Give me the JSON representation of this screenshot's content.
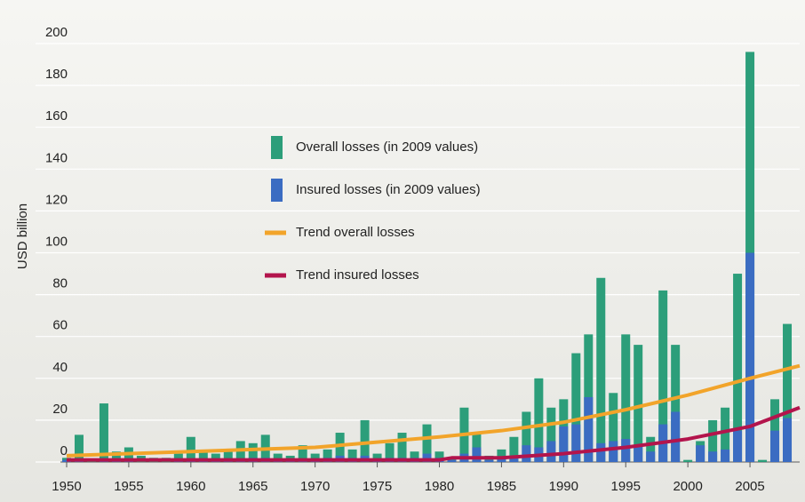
{
  "chart_data": {
    "type": "bar",
    "y_label": "USD billion",
    "x": [
      1950,
      1951,
      1952,
      1953,
      1954,
      1955,
      1956,
      1957,
      1958,
      1959,
      1960,
      1961,
      1962,
      1963,
      1964,
      1965,
      1966,
      1967,
      1968,
      1969,
      1970,
      1971,
      1972,
      1973,
      1974,
      1975,
      1976,
      1977,
      1978,
      1979,
      1980,
      1981,
      1982,
      1983,
      1984,
      1985,
      1986,
      1987,
      1988,
      1989,
      1990,
      1991,
      1992,
      1993,
      1994,
      1995,
      1996,
      1997,
      1998,
      1999,
      2000,
      2001,
      2002,
      2003,
      2004,
      2005,
      2006,
      2007,
      2008
    ],
    "xlim": [
      1949.5,
      2009
    ],
    "xticks": [
      1950,
      1955,
      1960,
      1965,
      1970,
      1975,
      1980,
      1985,
      1990,
      1995,
      2000,
      2005
    ],
    "ylim": [
      0,
      200
    ],
    "yticks": [
      0,
      20,
      40,
      60,
      80,
      100,
      120,
      140,
      160,
      180,
      200
    ],
    "grid": true,
    "series": [
      {
        "name": "Overall losses (in 2009 values)",
        "color": "#2c9e7a",
        "type": "bar",
        "values": [
          2,
          13,
          1,
          28,
          5,
          7,
          3,
          2,
          2,
          4,
          12,
          5,
          4,
          5,
          10,
          9,
          13,
          4,
          3,
          8,
          4,
          6,
          14,
          6,
          20,
          4,
          9,
          14,
          5,
          18,
          5,
          2,
          26,
          14,
          3,
          6,
          12,
          24,
          40,
          26,
          30,
          52,
          61,
          88,
          33,
          61,
          56,
          12,
          82,
          56,
          1,
          10,
          20,
          26,
          90,
          196,
          1,
          30,
          66
        ]
      },
      {
        "name": "Insured losses (in 2009 values)",
        "color": "#3b6cc2",
        "type": "bar",
        "values": [
          1,
          1,
          0,
          1,
          1,
          1,
          0,
          0,
          0,
          1,
          1,
          1,
          1,
          1,
          1,
          2,
          2,
          1,
          1,
          1,
          1,
          2,
          3,
          2,
          3,
          1,
          2,
          2,
          2,
          4,
          2,
          1,
          4,
          7,
          1,
          2,
          3,
          8,
          7,
          10,
          17,
          18,
          31,
          9,
          10,
          11,
          8,
          5,
          18,
          24,
          0,
          8,
          5,
          6,
          15,
          100,
          0,
          15,
          21
        ]
      },
      {
        "name": "Trend overall losses",
        "color": "#f2a42a",
        "type": "line",
        "x": [
          1950,
          1960,
          1970,
          1980,
          1985,
          1990,
          1995,
          2000,
          2005,
          2009
        ],
        "values": [
          3,
          5,
          7,
          12,
          15,
          19,
          25,
          32,
          40,
          46
        ]
      },
      {
        "name": "Trend insured losses",
        "color": "#b3144c",
        "type": "line",
        "x": [
          1950,
          1960,
          1970,
          1980,
          1981,
          1985,
          1990,
          1995,
          2000,
          2005,
          2009
        ],
        "values": [
          1,
          1,
          1,
          1,
          2,
          2,
          4,
          7,
          11,
          17,
          26
        ]
      }
    ]
  }
}
